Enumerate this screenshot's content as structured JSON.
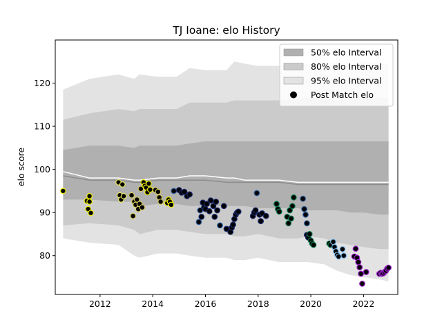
{
  "chart_data": {
    "type": "scatter",
    "title": "TJ Ioane: elo History",
    "xlabel": "",
    "ylabel": "elo score",
    "xlim": [
      2010.3,
      2023.3
    ],
    "ylim": [
      71,
      130
    ],
    "xticks": [
      2012,
      2014,
      2016,
      2018,
      2020,
      2022
    ],
    "yticks": [
      80,
      90,
      100,
      110,
      120
    ],
    "grid": false,
    "legend_position": "top-right",
    "colors": {
      "band95": "#e3e3e3",
      "band80": "#cbcbcb",
      "band50": "#b0b0b0",
      "median_line": "#8c8c8c",
      "mean_line": "#ffffff",
      "point_face": "#000000"
    },
    "legend": [
      {
        "label": "50% elo Interval",
        "kind": "band",
        "color": "#b0b0b0"
      },
      {
        "label": "80% elo Interval",
        "kind": "band",
        "color": "#cbcbcb"
      },
      {
        "label": "95% elo Interval",
        "kind": "band",
        "color": "#e3e3e3"
      },
      {
        "label": "Post Match elo",
        "kind": "point",
        "color": "#000000"
      }
    ],
    "bands": {
      "x": [
        2010.6,
        2011.6,
        2012.7,
        2013.3,
        2013.5,
        2014.2,
        2014.9,
        2015.4,
        2016.0,
        2016.8,
        2017.1,
        2017.5,
        2018.0,
        2018.8,
        2019.5,
        2019.9,
        2020.5,
        2021.0,
        2021.5,
        2022.0,
        2022.6,
        2022.95
      ],
      "p95_low": [
        84,
        83,
        82.5,
        80,
        79.5,
        80.5,
        80.5,
        80,
        79.5,
        79.5,
        79,
        79,
        79.5,
        78.5,
        78.5,
        78.5,
        78,
        76.5,
        75.5,
        75,
        74.5,
        74
      ],
      "p95_high": [
        118.5,
        121,
        122,
        121,
        122,
        121.5,
        121.5,
        123.5,
        123,
        123,
        125,
        124.5,
        124,
        124,
        124.5,
        124.5,
        125,
        124.5,
        124.5,
        125,
        124.5,
        124.5
      ],
      "p80_low": [
        87,
        87.5,
        87,
        86,
        85,
        86,
        86,
        85.5,
        85,
        85,
        84.5,
        84.5,
        85,
        84,
        84,
        84.5,
        84,
        83,
        82.5,
        82,
        81.5,
        81.5
      ],
      "p80_high": [
        111.5,
        113,
        114,
        113.5,
        114,
        114,
        114,
        115.5,
        115.5,
        115.5,
        116,
        116,
        116,
        116,
        116.5,
        116.5,
        116.5,
        116,
        116.5,
        116.5,
        116.5,
        116.5
      ],
      "p50_low": [
        93,
        93,
        92.5,
        92.5,
        91.5,
        92,
        92,
        91.5,
        91.5,
        91.5,
        91.5,
        91.5,
        91,
        91,
        91,
        90.5,
        90.5,
        90.5,
        90,
        90,
        89.5,
        89.5
      ],
      "p50_high": [
        104.5,
        105.5,
        105.5,
        105,
        105.5,
        105.5,
        105.5,
        106,
        106.5,
        106.5,
        106.5,
        106.5,
        106.5,
        106.5,
        106.5,
        106.5,
        106.5,
        106.5,
        106.5,
        106.5,
        106.5,
        106.5
      ],
      "median": [
        98.5,
        97.5,
        97.5,
        97,
        97,
        97.5,
        97.5,
        97.5,
        97.5,
        97,
        97,
        97,
        97,
        97,
        96.5,
        96.5,
        96.5,
        96.5,
        96.5,
        96.5,
        96.5,
        96.5
      ],
      "mean": [
        99.5,
        98,
        98,
        97.5,
        97.5,
        98,
        98,
        98.5,
        98.5,
        98,
        98,
        97.5,
        97.5,
        97.5,
        97,
        97,
        97,
        97,
        97,
        97,
        97,
        97
      ]
    },
    "points": [
      {
        "x": 2010.6,
        "y": 95,
        "edge": "#f0f000"
      },
      {
        "x": 2011.5,
        "y": 92.7,
        "edge": "#f0f000"
      },
      {
        "x": 2011.55,
        "y": 90.8,
        "edge": "#f0f000"
      },
      {
        "x": 2011.6,
        "y": 93.8,
        "edge": "#f0f000"
      },
      {
        "x": 2011.6,
        "y": 92.5,
        "edge": "#f0f000"
      },
      {
        "x": 2011.65,
        "y": 89.9,
        "edge": "#f0f000"
      },
      {
        "x": 2012.7,
        "y": 97,
        "edge": "#e8e85a"
      },
      {
        "x": 2012.75,
        "y": 94,
        "edge": "#e8e85a"
      },
      {
        "x": 2012.8,
        "y": 93,
        "edge": "#e8e85a"
      },
      {
        "x": 2012.85,
        "y": 96.5,
        "edge": "#e8e85a"
      },
      {
        "x": 2012.9,
        "y": 93.8,
        "edge": "#e8e85a"
      },
      {
        "x": 2013.2,
        "y": 94,
        "edge": "#d6c85a"
      },
      {
        "x": 2013.25,
        "y": 89.2,
        "edge": "#d6c85a"
      },
      {
        "x": 2013.3,
        "y": 92.5,
        "edge": "#d6c85a"
      },
      {
        "x": 2013.35,
        "y": 91.8,
        "edge": "#d6c85a"
      },
      {
        "x": 2013.4,
        "y": 93,
        "edge": "#d6c85a"
      },
      {
        "x": 2013.45,
        "y": 90.8,
        "edge": "#d6c85a"
      },
      {
        "x": 2013.5,
        "y": 92,
        "edge": "#d6c85a"
      },
      {
        "x": 2013.55,
        "y": 95.5,
        "edge": "#d6c85a"
      },
      {
        "x": 2013.6,
        "y": 91.2,
        "edge": "#d6c85a"
      },
      {
        "x": 2013.65,
        "y": 97,
        "edge": "#f0f000"
      },
      {
        "x": 2013.7,
        "y": 96.2,
        "edge": "#f0f000"
      },
      {
        "x": 2013.75,
        "y": 95.8,
        "edge": "#f0f000"
      },
      {
        "x": 2013.8,
        "y": 94.7,
        "edge": "#f0f000"
      },
      {
        "x": 2013.85,
        "y": 96.7,
        "edge": "#f0f000"
      },
      {
        "x": 2013.9,
        "y": 95.3,
        "edge": "#f0f000"
      },
      {
        "x": 2014.1,
        "y": 95.2,
        "edge": "#d6c85a"
      },
      {
        "x": 2014.2,
        "y": 94.8,
        "edge": "#d6c85a"
      },
      {
        "x": 2014.25,
        "y": 93.5,
        "edge": "#d6c85a"
      },
      {
        "x": 2014.3,
        "y": 92.5,
        "edge": "#d6c85a"
      },
      {
        "x": 2014.55,
        "y": 92.2,
        "edge": "#f0f000"
      },
      {
        "x": 2014.6,
        "y": 93,
        "edge": "#f0f000"
      },
      {
        "x": 2014.65,
        "y": 92.5,
        "edge": "#f0f000"
      },
      {
        "x": 2014.7,
        "y": 91.8,
        "edge": "#f0f000"
      },
      {
        "x": 2014.8,
        "y": 95,
        "edge": "#2b5fa0"
      },
      {
        "x": 2015.0,
        "y": 95.2,
        "edge": "#1b2a6b"
      },
      {
        "x": 2015.1,
        "y": 94.6,
        "edge": "#1b2a6b"
      },
      {
        "x": 2015.2,
        "y": 94.8,
        "edge": "#1b2a6b"
      },
      {
        "x": 2015.3,
        "y": 93.8,
        "edge": "#1b2a6b"
      },
      {
        "x": 2015.4,
        "y": 94.2,
        "edge": "#1b2a6b"
      },
      {
        "x": 2015.75,
        "y": 87.8,
        "edge": "#2b5fa0"
      },
      {
        "x": 2015.8,
        "y": 90.5,
        "edge": "#2b5fa0"
      },
      {
        "x": 2015.85,
        "y": 89,
        "edge": "#1b2a6b"
      },
      {
        "x": 2015.9,
        "y": 92.3,
        "edge": "#1b2a6b"
      },
      {
        "x": 2015.95,
        "y": 91.2,
        "edge": "#1b2a6b"
      },
      {
        "x": 2016.0,
        "y": 90.8,
        "edge": "#1b2a6b"
      },
      {
        "x": 2016.05,
        "y": 92,
        "edge": "#1b2a6b"
      },
      {
        "x": 2016.15,
        "y": 90.3,
        "edge": "#1b2a6b"
      },
      {
        "x": 2016.2,
        "y": 92.8,
        "edge": "#1b2a6b"
      },
      {
        "x": 2016.3,
        "y": 91.5,
        "edge": "#1b2a6b"
      },
      {
        "x": 2016.35,
        "y": 89,
        "edge": "#1b2a6b"
      },
      {
        "x": 2016.4,
        "y": 92.5,
        "edge": "#1b2a6b"
      },
      {
        "x": 2016.45,
        "y": 90.5,
        "edge": "#1b2a6b"
      },
      {
        "x": 2016.55,
        "y": 87,
        "edge": "#2b5fa0"
      },
      {
        "x": 2016.7,
        "y": 91.5,
        "edge": "#1b2a6b"
      },
      {
        "x": 2016.8,
        "y": 86.2,
        "edge": "#1b2a6b"
      },
      {
        "x": 2016.95,
        "y": 85.5,
        "edge": "#1b2a6b"
      },
      {
        "x": 2017.0,
        "y": 86.5,
        "edge": "#1b2a6b"
      },
      {
        "x": 2017.05,
        "y": 87.2,
        "edge": "#1b2a6b"
      },
      {
        "x": 2017.1,
        "y": 88.5,
        "edge": "#1b2a6b"
      },
      {
        "x": 2017.15,
        "y": 89.5,
        "edge": "#1b2a6b"
      },
      {
        "x": 2017.2,
        "y": 90,
        "edge": "#1b2a6b"
      },
      {
        "x": 2017.25,
        "y": 90.2,
        "edge": "#1b2a6b"
      },
      {
        "x": 2017.8,
        "y": 89.2,
        "edge": "#1b2a6b"
      },
      {
        "x": 2017.85,
        "y": 90,
        "edge": "#1b2a6b"
      },
      {
        "x": 2017.9,
        "y": 90.5,
        "edge": "#1b2a6b"
      },
      {
        "x": 2017.95,
        "y": 94.5,
        "edge": "#2b5fa0"
      },
      {
        "x": 2018.05,
        "y": 89.5,
        "edge": "#1b2a6b"
      },
      {
        "x": 2018.1,
        "y": 88,
        "edge": "#1b2a6b"
      },
      {
        "x": 2018.15,
        "y": 89.8,
        "edge": "#1b2a6b"
      },
      {
        "x": 2018.3,
        "y": 89.2,
        "edge": "#1b2a6b"
      },
      {
        "x": 2018.7,
        "y": 92,
        "edge": "#0c7a4e"
      },
      {
        "x": 2018.75,
        "y": 90.8,
        "edge": "#0c7a4e"
      },
      {
        "x": 2018.8,
        "y": 90.2,
        "edge": "#0c7a4e"
      },
      {
        "x": 2019.1,
        "y": 89,
        "edge": "#0c7a4e"
      },
      {
        "x": 2019.15,
        "y": 87.5,
        "edge": "#0c7a4e"
      },
      {
        "x": 2019.2,
        "y": 90.5,
        "edge": "#0c7a4e"
      },
      {
        "x": 2019.25,
        "y": 88.6,
        "edge": "#0c7a4e"
      },
      {
        "x": 2019.3,
        "y": 91.5,
        "edge": "#0c7a4e"
      },
      {
        "x": 2019.35,
        "y": 93.5,
        "edge": "#0c7a4e"
      },
      {
        "x": 2019.7,
        "y": 93.2,
        "edge": "#2b5fa0"
      },
      {
        "x": 2019.75,
        "y": 90.8,
        "edge": "#2b5fa0"
      },
      {
        "x": 2019.8,
        "y": 89.5,
        "edge": "#2b5fa0"
      },
      {
        "x": 2019.85,
        "y": 87.5,
        "edge": "#2b5fa0"
      },
      {
        "x": 2019.85,
        "y": 84.8,
        "edge": "#1b2a6b"
      },
      {
        "x": 2019.9,
        "y": 84.2,
        "edge": "#1b2a6b"
      },
      {
        "x": 2019.95,
        "y": 85,
        "edge": "#0c7a4e"
      },
      {
        "x": 2020.0,
        "y": 83.5,
        "edge": "#0c7a4e"
      },
      {
        "x": 2020.05,
        "y": 82.8,
        "edge": "#0c7a4e"
      },
      {
        "x": 2020.1,
        "y": 82.5,
        "edge": "#0c7a4e"
      },
      {
        "x": 2020.7,
        "y": 82.8,
        "edge": "#0c7a4e"
      },
      {
        "x": 2020.75,
        "y": 82.5,
        "edge": "#0c7a4e"
      },
      {
        "x": 2020.85,
        "y": 83.2,
        "edge": "#7ab6e8"
      },
      {
        "x": 2020.9,
        "y": 82,
        "edge": "#7ab6e8"
      },
      {
        "x": 2020.95,
        "y": 81,
        "edge": "#7ab6e8"
      },
      {
        "x": 2021.0,
        "y": 80.2,
        "edge": "#7ab6e8"
      },
      {
        "x": 2021.05,
        "y": 79.8,
        "edge": "#7ab6e8"
      },
      {
        "x": 2021.2,
        "y": 81.5,
        "edge": "#7ab6e8"
      },
      {
        "x": 2021.25,
        "y": 80,
        "edge": "#7ab6e8"
      },
      {
        "x": 2021.65,
        "y": 79.8,
        "edge": "#9a1fc8"
      },
      {
        "x": 2021.7,
        "y": 81.6,
        "edge": "#9a1fc8"
      },
      {
        "x": 2021.75,
        "y": 79.5,
        "edge": "#9a1fc8"
      },
      {
        "x": 2021.8,
        "y": 78.5,
        "edge": "#9a1fc8"
      },
      {
        "x": 2021.85,
        "y": 77.3,
        "edge": "#9a1fc8"
      },
      {
        "x": 2021.9,
        "y": 75.8,
        "edge": "#9a1fc8"
      },
      {
        "x": 2021.95,
        "y": 73.5,
        "edge": "#9a1fc8"
      },
      {
        "x": 2022.1,
        "y": 76.2,
        "edge": "#9a1fc8"
      },
      {
        "x": 2022.6,
        "y": 75.8,
        "edge": "#9a1fc8"
      },
      {
        "x": 2022.65,
        "y": 76,
        "edge": "#9a1fc8"
      },
      {
        "x": 2022.7,
        "y": 75.8,
        "edge": "#9a1fc8"
      },
      {
        "x": 2022.75,
        "y": 75.9,
        "edge": "#9a1fc8"
      },
      {
        "x": 2022.8,
        "y": 76.2,
        "edge": "#9a1fc8"
      },
      {
        "x": 2022.85,
        "y": 76.5,
        "edge": "#9a1fc8"
      },
      {
        "x": 2022.9,
        "y": 77,
        "edge": "#9a1fc8"
      },
      {
        "x": 2022.95,
        "y": 77.2,
        "edge": "#9a1fc8"
      }
    ]
  }
}
